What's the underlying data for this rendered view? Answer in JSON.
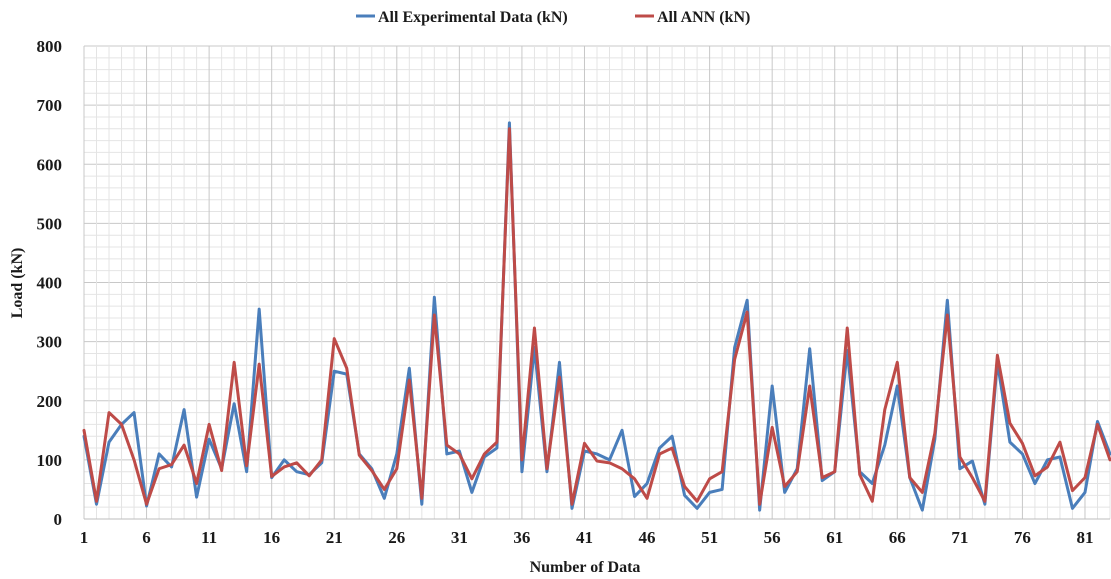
{
  "chart_data": {
    "type": "line",
    "title": "",
    "xlabel": "Number of Data",
    "ylabel": "Load (kN)",
    "ylim": [
      0,
      800
    ],
    "yticks": [
      0,
      100,
      200,
      300,
      400,
      500,
      600,
      700,
      800
    ],
    "xlim": [
      1,
      83
    ],
    "xticks": [
      1,
      6,
      11,
      16,
      21,
      26,
      31,
      36,
      41,
      46,
      51,
      56,
      61,
      66,
      71,
      76,
      81
    ],
    "grid": true,
    "legend_position": "top-center",
    "x": [
      1,
      2,
      3,
      4,
      5,
      6,
      7,
      8,
      9,
      10,
      11,
      12,
      13,
      14,
      15,
      16,
      17,
      18,
      19,
      20,
      21,
      22,
      23,
      24,
      25,
      26,
      27,
      28,
      29,
      30,
      31,
      32,
      33,
      34,
      35,
      36,
      37,
      38,
      39,
      40,
      41,
      42,
      43,
      44,
      45,
      46,
      47,
      48,
      49,
      50,
      51,
      52,
      53,
      54,
      55,
      56,
      57,
      58,
      59,
      60,
      61,
      62,
      63,
      64,
      65,
      66,
      67,
      68,
      69,
      70,
      71,
      72,
      73,
      74,
      75,
      76,
      77,
      78,
      79,
      80,
      81,
      82,
      83
    ],
    "series": [
      {
        "name": "All Experimental Data (kN)",
        "color": "#4a7ebb",
        "values": [
          140,
          25,
          130,
          160,
          180,
          22,
          110,
          88,
          185,
          37,
          135,
          85,
          195,
          80,
          355,
          70,
          100,
          80,
          75,
          95,
          250,
          245,
          110,
          85,
          35,
          110,
          255,
          25,
          375,
          110,
          115,
          45,
          105,
          120,
          670,
          80,
          290,
          80,
          265,
          18,
          115,
          110,
          100,
          150,
          38,
          60,
          120,
          140,
          40,
          18,
          45,
          50,
          290,
          370,
          15,
          225,
          45,
          85,
          288,
          65,
          80,
          285,
          80,
          60,
          125,
          225,
          70,
          15,
          135,
          370,
          85,
          98,
          25,
          265,
          130,
          110,
          60,
          100,
          105,
          18,
          45,
          165,
          110
        ]
      },
      {
        "name": "All ANN (kN)",
        "color": "#be4b48",
        "values": [
          150,
          30,
          180,
          160,
          100,
          25,
          85,
          92,
          125,
          60,
          160,
          82,
          265,
          90,
          262,
          72,
          88,
          95,
          73,
          100,
          305,
          255,
          108,
          82,
          50,
          85,
          235,
          35,
          345,
          125,
          110,
          68,
          110,
          130,
          660,
          100,
          323,
          85,
          240,
          25,
          128,
          98,
          95,
          85,
          68,
          35,
          110,
          120,
          55,
          30,
          68,
          80,
          270,
          350,
          25,
          155,
          55,
          80,
          225,
          70,
          80,
          323,
          75,
          30,
          185,
          265,
          70,
          45,
          145,
          345,
          105,
          70,
          30,
          277,
          162,
          128,
          73,
          88,
          130,
          48,
          70,
          160,
          100
        ]
      }
    ]
  }
}
